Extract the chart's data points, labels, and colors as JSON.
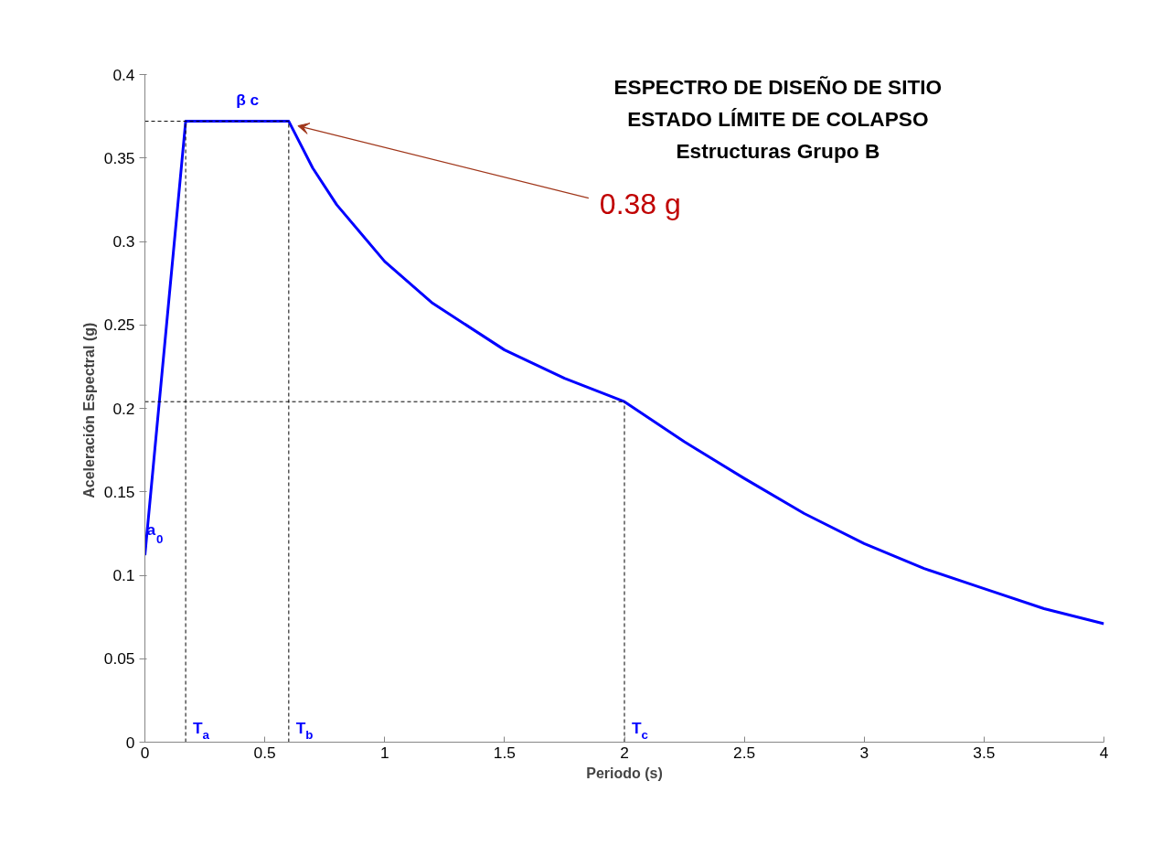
{
  "chart_data": {
    "type": "line",
    "title": "ESPECTRO DE DISEÑO DE SITIO\nESTADO LÍMITE DE COLAPSO\nEstructuras Grupo B",
    "xlabel": "Periodo (s)",
    "ylabel": "Aceleración  Espectral (g)",
    "xlim": [
      0,
      4
    ],
    "ylim": [
      0,
      0.4
    ],
    "xticks": [
      0,
      0.5,
      1,
      1.5,
      2,
      2.5,
      3,
      3.5,
      4
    ],
    "yticks": [
      0,
      0.05,
      0.1,
      0.15,
      0.2,
      0.25,
      0.3,
      0.35,
      0.4
    ],
    "grid": false,
    "marker": "none",
    "series": [
      {
        "color": "#0000ff",
        "line_style": "solid",
        "x": [
          0,
          0.17,
          0.6,
          0.7,
          0.8,
          1.0,
          1.2,
          1.5,
          1.75,
          2.0,
          2.25,
          2.5,
          2.75,
          3.0,
          3.25,
          3.5,
          3.75,
          4.0
        ],
        "values": [
          0.112,
          0.372,
          0.372,
          0.344,
          0.322,
          0.288,
          0.263,
          0.235,
          0.218,
          0.204,
          0.18,
          0.158,
          0.137,
          0.119,
          0.104,
          0.092,
          0.08,
          0.071
        ]
      },
      {
        "color": "#000000",
        "line_style": "dashed",
        "x": [
          0,
          0.6
        ],
        "values": [
          0.372,
          0.372
        ]
      },
      {
        "color": "#000000",
        "line_style": "dashed",
        "x": [
          0,
          2.0
        ],
        "values": [
          0.204,
          0.204
        ]
      },
      {
        "color": "#000000",
        "line_style": "dashed",
        "x": [
          0.17,
          0.17
        ],
        "values": [
          0,
          0.372
        ]
      },
      {
        "color": "#000000",
        "line_style": "dashed",
        "x": [
          0.6,
          0.6
        ],
        "values": [
          0,
          0.372
        ]
      },
      {
        "color": "#000000",
        "line_style": "dashed",
        "x": [
          2.0,
          2.0
        ],
        "values": [
          0,
          0.204
        ]
      }
    ],
    "annotations": [
      {
        "text": "β c",
        "x": 0.38,
        "y": 0.372
      },
      {
        "text": "a$_{0}$",
        "x": 0,
        "y": 0.112
      },
      {
        "text": "T$_{a}$",
        "x": 0.17,
        "y": 0
      },
      {
        "text": "T$_{b}$",
        "x": 0.6,
        "y": 0
      },
      {
        "text": "T$_{c}$",
        "x": 2.0,
        "y": 0
      },
      "0.38 g"
    ]
  }
}
